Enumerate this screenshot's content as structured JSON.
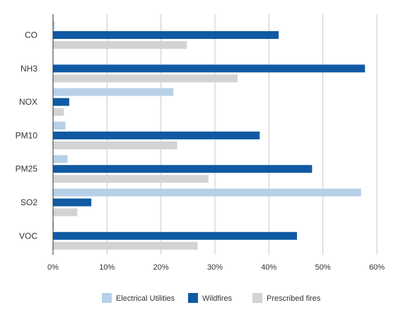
{
  "chart_data": {
    "type": "bar",
    "orientation": "horizontal",
    "categories": [
      "CO",
      "NH3",
      "NOX",
      "PM10",
      "PM25",
      "SO2",
      "VOC"
    ],
    "series": [
      {
        "name": "Electrical Utilities",
        "color": "#b7d0e8",
        "values": [
          0.3,
          0,
          22.3,
          2.3,
          2.7,
          57.1,
          0.2
        ]
      },
      {
        "name": "Wildfires",
        "color": "#0f5aa3",
        "values": [
          41.8,
          57.8,
          3.0,
          38.3,
          48.0,
          7.1,
          45.2
        ]
      },
      {
        "name": "Prescribed fires",
        "color": "#d3d3d3",
        "values": [
          24.8,
          34.2,
          2.0,
          23.0,
          28.8,
          4.5,
          26.8
        ]
      }
    ],
    "x_ticks": [
      "0%",
      "10%",
      "20%",
      "30%",
      "40%",
      "50%",
      "60%"
    ],
    "xlim": [
      0,
      60
    ],
    "grid": true,
    "legend_position": "bottom",
    "title": "",
    "xlabel": "",
    "ylabel": ""
  }
}
